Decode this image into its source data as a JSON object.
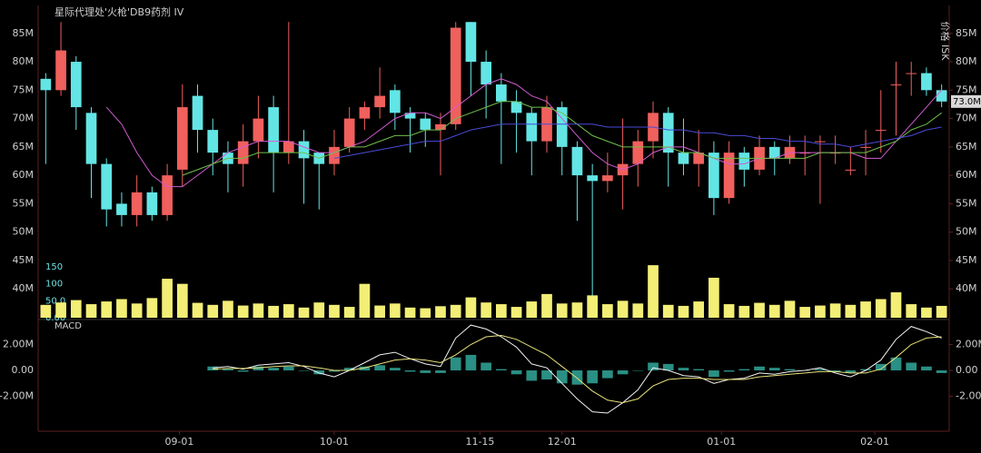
{
  "chart_data": [
    {
      "type": "candlestick",
      "title": "星际代理处'火枪'DB9药剂 IV",
      "y_label": "价格 ISK",
      "up_color": "#f0605d",
      "down_color": "#63e5e5",
      "xlim": [
        0,
        60
      ],
      "open": [
        77,
        75,
        80,
        71,
        62,
        55,
        53,
        57,
        53,
        61,
        74,
        68,
        64,
        62,
        66,
        72,
        64,
        66,
        64,
        62,
        65,
        70,
        72,
        75,
        71,
        70,
        68,
        69,
        87,
        80,
        76,
        73,
        71,
        66,
        72,
        65,
        60,
        59,
        60,
        62,
        66,
        71,
        64,
        62,
        64,
        56,
        64,
        61,
        65,
        63,
        64,
        66,
        64,
        61,
        65,
        68,
        76,
        78,
        78,
        75
      ],
      "high": [
        78,
        87,
        81,
        72,
        63,
        57,
        60,
        58,
        62,
        76,
        76,
        70,
        66,
        69,
        74,
        74,
        87,
        68,
        64,
        68,
        72,
        73,
        79,
        76,
        72,
        71,
        71,
        87,
        87,
        82,
        78,
        75,
        72,
        74,
        73,
        66,
        62,
        64,
        70,
        68,
        73,
        72,
        70,
        68,
        66,
        66,
        65,
        67,
        66,
        67,
        67,
        67,
        67,
        65,
        68,
        75,
        80,
        80,
        79,
        76
      ],
      "low": [
        62,
        74,
        68,
        56,
        51,
        51,
        51,
        52,
        52,
        58,
        64,
        60,
        57,
        58,
        63,
        57,
        62,
        55,
        54,
        60,
        64,
        68,
        70,
        68,
        64,
        65,
        60,
        68,
        74,
        70,
        62,
        64,
        60,
        64,
        60,
        52,
        35,
        57,
        54,
        58,
        63,
        58,
        60,
        58,
        53,
        55,
        58,
        60,
        60,
        62,
        60,
        55,
        62,
        60,
        60,
        64,
        67,
        74,
        74,
        72
      ],
      "close": [
        75,
        82,
        72,
        62,
        54,
        53,
        57,
        53,
        60,
        72,
        68,
        64,
        62,
        66,
        70,
        64,
        66,
        63,
        62,
        65,
        70,
        72,
        74,
        71,
        70,
        68,
        69,
        86,
        80,
        76,
        73,
        71,
        66,
        72,
        65,
        60,
        59,
        60,
        62,
        66,
        71,
        64,
        62,
        64,
        56,
        64,
        61,
        65,
        63,
        65,
        64,
        66,
        64,
        61,
        65,
        68,
        76,
        78,
        75,
        73
      ],
      "series": [
        {
          "color": "#d25bd2",
          "values": [
            null,
            null,
            null,
            null,
            72,
            69,
            64,
            60,
            58,
            58,
            60,
            62,
            64,
            65,
            66,
            66,
            66,
            65,
            64,
            64,
            65,
            66,
            68,
            70,
            71,
            71,
            70,
            72,
            74,
            76,
            77,
            76,
            74,
            73,
            70,
            67,
            64,
            62,
            61,
            62,
            64,
            65,
            65,
            64,
            63,
            62,
            62,
            63,
            63,
            64,
            64,
            64,
            64,
            64,
            63,
            63,
            66,
            69,
            72,
            75
          ]
        },
        {
          "color": "#6fbf4a",
          "values": [
            null,
            null,
            null,
            null,
            null,
            null,
            null,
            null,
            null,
            60,
            61,
            62,
            63,
            63,
            64,
            64,
            64,
            64,
            63,
            64,
            65,
            65,
            66,
            67,
            67,
            68,
            68,
            70,
            71,
            72,
            73,
            73,
            72,
            72,
            71,
            69,
            67,
            66,
            65,
            65,
            65,
            65,
            64,
            64,
            63,
            63,
            63,
            63,
            63,
            63,
            63,
            64,
            64,
            64,
            64,
            65,
            66,
            68,
            69,
            71
          ]
        },
        {
          "color": "#4a4ad8",
          "values": [
            null,
            null,
            null,
            null,
            null,
            null,
            null,
            null,
            null,
            null,
            null,
            null,
            null,
            null,
            null,
            null,
            null,
            null,
            null,
            63,
            63.5,
            64,
            64.5,
            65,
            65.5,
            66,
            66,
            67,
            68,
            68.5,
            69,
            69,
            69,
            69,
            69,
            69,
            69,
            68.5,
            68.5,
            68.5,
            68.5,
            68,
            68,
            67.5,
            67.5,
            67,
            67,
            66.5,
            66.5,
            66,
            66,
            65.5,
            65.5,
            65,
            65.5,
            66,
            66.5,
            67,
            68,
            68.5
          ]
        }
      ],
      "ylim": [
        34.6,
        89.6
      ],
      "yticks": [
        {
          "value": 85,
          "label": "85M"
        },
        {
          "value": 80,
          "label": "80M"
        },
        {
          "value": 75,
          "label": "75M"
        },
        {
          "value": 70,
          "label": "70M"
        },
        {
          "value": 65,
          "label": "65M"
        },
        {
          "value": 60,
          "label": "60M"
        },
        {
          "value": 55,
          "label": "55M"
        },
        {
          "value": 50,
          "label": "50M"
        },
        {
          "value": 45,
          "label": "45M"
        },
        {
          "value": 40,
          "label": "40M"
        }
      ],
      "last_price": {
        "value": 73,
        "label": "73.0M"
      }
    },
    {
      "type": "bar",
      "color": "#f3ee76",
      "xlim": [
        0,
        60
      ],
      "values": [
        38,
        45,
        52,
        40,
        48,
        55,
        42,
        58,
        115,
        100,
        44,
        38,
        50,
        36,
        42,
        35,
        40,
        30,
        45,
        38,
        32,
        100,
        36,
        42,
        30,
        28,
        34,
        38,
        60,
        45,
        40,
        32,
        48,
        70,
        42,
        45,
        66,
        40,
        50,
        42,
        155,
        38,
        35,
        48,
        118,
        40,
        35,
        44,
        38,
        50,
        32,
        36,
        42,
        38,
        48,
        55,
        75,
        40,
        30,
        35
      ],
      "ylim": [
        0,
        150
      ],
      "yticks": [
        150,
        100,
        {
          "value": 50,
          "label": "50.0"
        },
        {
          "value": 0,
          "label": "0.00"
        }
      ]
    },
    {
      "type": "macd",
      "label": "MACD",
      "xlim": [
        0,
        60
      ],
      "hist_color": "#2a8f84",
      "histogram": [
        null,
        null,
        null,
        null,
        null,
        null,
        null,
        null,
        null,
        null,
        null,
        0.3,
        0.1,
        -0.1,
        0.3,
        0.2,
        0.3,
        0.0,
        -0.3,
        -0.1,
        0.2,
        0.3,
        0.4,
        0.2,
        -0.1,
        -0.2,
        -0.2,
        1.0,
        1.2,
        0.6,
        0.1,
        -0.3,
        -0.8,
        -0.7,
        -1.0,
        -1.1,
        -1.0,
        -0.6,
        -0.3,
        0.0,
        0.6,
        0.5,
        0.2,
        0.1,
        -0.5,
        -0.1,
        0.1,
        0.3,
        0.2,
        0.1,
        0.0,
        0.1,
        -0.1,
        -0.2,
        0.1,
        0.5,
        1.0,
        0.6,
        0.3,
        -0.2
      ],
      "series": [
        {
          "color": "#f2f2f2",
          "values": [
            null,
            null,
            null,
            null,
            null,
            null,
            null,
            null,
            null,
            null,
            null,
            0.2,
            0.3,
            0.1,
            0.4,
            0.5,
            0.6,
            0.3,
            -0.2,
            -0.5,
            0.0,
            0.6,
            1.2,
            1.4,
            0.9,
            0.5,
            0.3,
            2.5,
            3.5,
            3.2,
            2.6,
            1.8,
            0.5,
            0.2,
            -1.0,
            -2.2,
            -3.2,
            -3.3,
            -2.5,
            -1.5,
            0.2,
            0.0,
            -0.4,
            -0.5,
            -1.0,
            -0.7,
            -0.6,
            -0.2,
            -0.3,
            -0.1,
            0.0,
            0.2,
            -0.2,
            -0.5,
            0.0,
            0.8,
            2.4,
            3.4,
            3.0,
            2.5
          ]
        },
        {
          "color": "#e8e27a",
          "values": [
            null,
            null,
            null,
            null,
            null,
            null,
            null,
            null,
            null,
            null,
            null,
            0.1,
            0.15,
            0.15,
            0.2,
            0.3,
            0.35,
            0.35,
            0.2,
            0.0,
            0.0,
            0.2,
            0.5,
            0.8,
            0.9,
            0.8,
            0.6,
            1.2,
            2.0,
            2.6,
            2.7,
            2.4,
            1.8,
            1.2,
            0.3,
            -0.6,
            -1.6,
            -2.3,
            -2.5,
            -2.2,
            -1.2,
            -0.7,
            -0.6,
            -0.6,
            -0.7,
            -0.7,
            -0.7,
            -0.5,
            -0.4,
            -0.3,
            -0.2,
            -0.1,
            -0.1,
            -0.2,
            -0.2,
            0.1,
            1.0,
            2.0,
            2.5,
            2.6
          ]
        }
      ],
      "ylim": [
        -4.7,
        3.93
      ],
      "yticks": [
        {
          "value": 2,
          "label": "2.00M"
        },
        {
          "value": 0,
          "label": "0.00"
        },
        {
          "value": -2,
          "label": "-2.00M"
        }
      ],
      "xticks": [
        {
          "value": 9.3,
          "label": "09-01"
        },
        {
          "value": 19.5,
          "label": "10-01"
        },
        {
          "value": 29.1,
          "label": "11-15"
        },
        {
          "value": 34.5,
          "label": "12-01"
        },
        {
          "value": 45,
          "label": "01-01"
        },
        {
          "value": 55.1,
          "label": "02-01"
        }
      ]
    }
  ]
}
